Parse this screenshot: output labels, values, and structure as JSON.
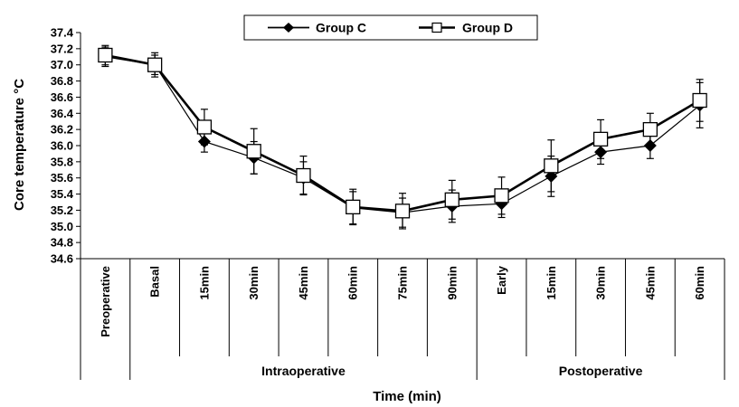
{
  "chart_data": {
    "type": "line",
    "title": "",
    "ylabel": "Core temperature °C",
    "xlabel": "Time (min)",
    "ylim": [
      34.6,
      37.4
    ],
    "yticks": [
      "37.4",
      "37.2",
      "37.0",
      "36.8",
      "36.6",
      "36.4",
      "36.2",
      "36.0",
      "35.8",
      "35.6",
      "35.4",
      "35.2",
      "35.0",
      "34.8",
      "34.6"
    ],
    "categories": [
      "Preoperative",
      "Basal",
      "15min",
      "30min",
      "45min",
      "60min",
      "75min",
      "90min",
      "Early",
      "15min",
      "30min",
      "45min",
      "60min"
    ],
    "groups": [
      {
        "label": "Intraoperative",
        "start": 1,
        "end": 7
      },
      {
        "label": "Postoperative",
        "start": 8,
        "end": 12
      }
    ],
    "legend_position": "top-center",
    "series": [
      {
        "name": "Group C",
        "marker": "diamond",
        "values": [
          37.1,
          37.0,
          36.05,
          35.85,
          35.6,
          35.23,
          35.17,
          35.25,
          35.28,
          35.62,
          35.92,
          36.0,
          36.5
        ],
        "errors": [
          0.12,
          0.12,
          0.13,
          0.2,
          0.2,
          0.2,
          0.18,
          0.2,
          0.17,
          0.25,
          0.15,
          0.16,
          0.28
        ]
      },
      {
        "name": "Group D",
        "marker": "open-square",
        "values": [
          37.12,
          37.0,
          36.23,
          35.93,
          35.63,
          35.24,
          35.19,
          35.33,
          35.38,
          35.75,
          36.08,
          36.2,
          36.56
        ],
        "errors": [
          0.12,
          0.15,
          0.22,
          0.28,
          0.24,
          0.22,
          0.22,
          0.24,
          0.23,
          0.32,
          0.24,
          0.2,
          0.26
        ]
      }
    ]
  }
}
